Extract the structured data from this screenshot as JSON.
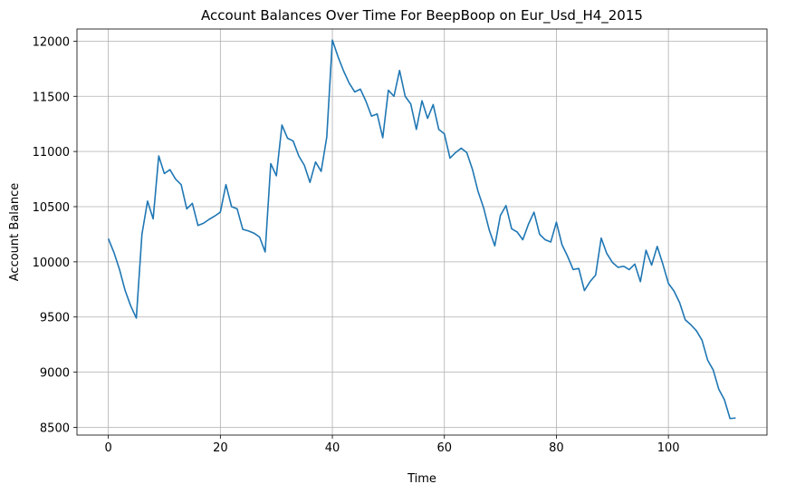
{
  "chart_data": {
    "type": "line",
    "title": "Account Balances Over Time For BeepBoop on Eur_Usd_H4_2015",
    "xlabel": "Time",
    "ylabel": "Account Balance",
    "xlim": [
      -5.6,
      117.6
    ],
    "ylim": [
      8430,
      12110
    ],
    "xticks": [
      0,
      20,
      40,
      60,
      80,
      100
    ],
    "yticks": [
      8500,
      9000,
      9500,
      10000,
      10500,
      11000,
      11500,
      12000
    ],
    "grid": true,
    "series": [
      {
        "color": "#1f77b4",
        "x": [
          0,
          1,
          2,
          3,
          4,
          5,
          6,
          7,
          8,
          9,
          10,
          11,
          12,
          13,
          14,
          15,
          16,
          17,
          18,
          19,
          20,
          21,
          22,
          23,
          24,
          25,
          26,
          27,
          28,
          29,
          30,
          31,
          32,
          33,
          34,
          35,
          36,
          37,
          38,
          39,
          40,
          41,
          42,
          43,
          44,
          45,
          46,
          47,
          48,
          49,
          50,
          51,
          52,
          53,
          54,
          55,
          56,
          57,
          58,
          59,
          60,
          61,
          62,
          63,
          64,
          65,
          66,
          67,
          68,
          69,
          70,
          71,
          72,
          73,
          74,
          75,
          76,
          77,
          78,
          79,
          80,
          81,
          82,
          83,
          84,
          85,
          86,
          87,
          88,
          89,
          90,
          91,
          92,
          93,
          94,
          95,
          96,
          97,
          98,
          99,
          100,
          101,
          102,
          103,
          104,
          105,
          106,
          107,
          108,
          109,
          110,
          111,
          112
        ],
        "y": [
          10210,
          10085,
          9930,
          9740,
          9600,
          9490,
          10250,
          10550,
          10390,
          10960,
          10800,
          10835,
          10750,
          10700,
          10480,
          10530,
          10330,
          10350,
          10385,
          10415,
          10450,
          10700,
          10500,
          10480,
          10295,
          10280,
          10260,
          10225,
          10090,
          10890,
          10780,
          11240,
          11120,
          11095,
          10960,
          10875,
          10720,
          10905,
          10820,
          11130,
          12010,
          11860,
          11730,
          11620,
          11540,
          11565,
          11455,
          11320,
          11340,
          11125,
          11555,
          11500,
          11735,
          11500,
          11430,
          11200,
          11460,
          11300,
          11425,
          11200,
          11160,
          10940,
          10990,
          11030,
          10990,
          10840,
          10640,
          10490,
          10290,
          10145,
          10420,
          10510,
          10300,
          10270,
          10200,
          10340,
          10450,
          10250,
          10200,
          10180,
          10360,
          10155,
          10050,
          9930,
          9940,
          9740,
          9820,
          9880,
          10215,
          10075,
          9995,
          9950,
          9960,
          9930,
          9980,
          9820,
          10105,
          9970,
          10140,
          9980,
          9805,
          9735,
          9630,
          9475,
          9430,
          9375,
          9290,
          9110,
          9020,
          8845,
          8750,
          8580,
          8585
        ]
      }
    ]
  }
}
